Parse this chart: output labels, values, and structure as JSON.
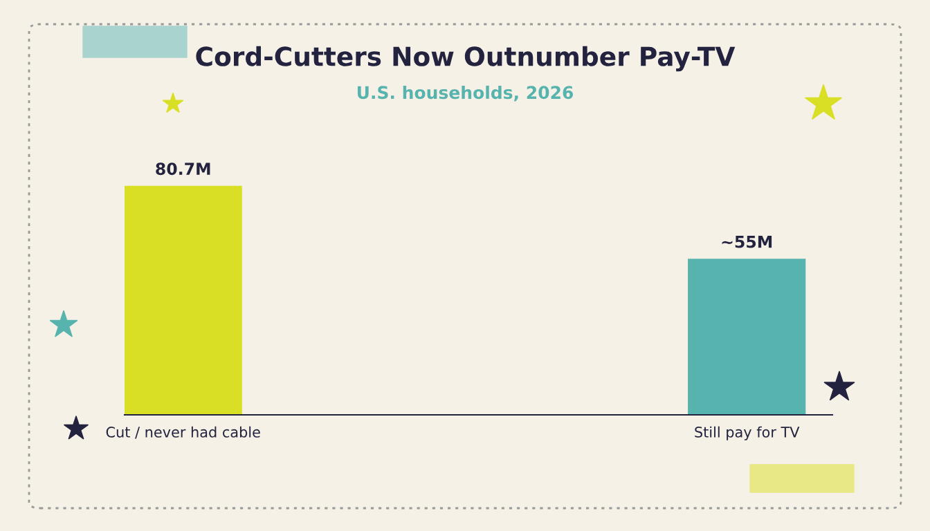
{
  "chart_data": {
    "type": "bar",
    "title": "Cord-Cutters Now Outnumber Pay-TV",
    "subtitle": "U.S. households, 2026",
    "categories": [
      "Cut / never had cable",
      "Still pay for TV"
    ],
    "values": [
      80.7,
      55
    ],
    "colors": [
      "#d9df24",
      "#57b3ae"
    ],
    "value_labels": [
      "80.7M",
      "~55M"
    ]
  }
}
